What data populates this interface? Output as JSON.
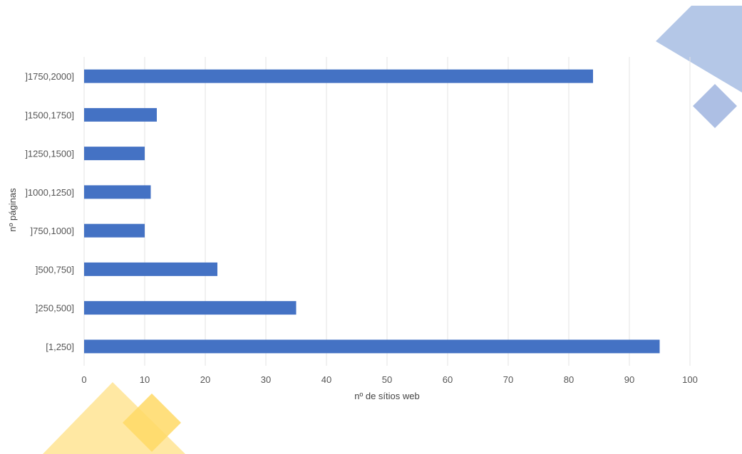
{
  "chart_data": {
    "type": "bar",
    "orientation": "horizontal",
    "categories": [
      "[1,250]",
      "]250,500]",
      "]500,750]",
      "]750,1000]",
      "]1000,1250]",
      "]1250,1500]",
      "]1500,1750]",
      "]1750,2000]"
    ],
    "values": [
      95,
      35,
      22,
      10,
      11,
      10,
      12,
      84
    ],
    "xlabel": "nº de sítios web",
    "ylabel": "nº páginas",
    "xlim": [
      0,
      100
    ],
    "xticks": [
      0,
      10,
      20,
      30,
      40,
      50,
      60,
      70,
      80,
      90,
      100
    ],
    "grid": "vertical",
    "legend": "none",
    "colors": {
      "bar": "#4472c4",
      "grid": "#e3e3e3",
      "decor_blue": "#b4c7e7",
      "decor_blue_dark": "#9fb4df",
      "decor_yellow": "#ffe699",
      "decor_yellow_dark": "#ffd966"
    }
  }
}
